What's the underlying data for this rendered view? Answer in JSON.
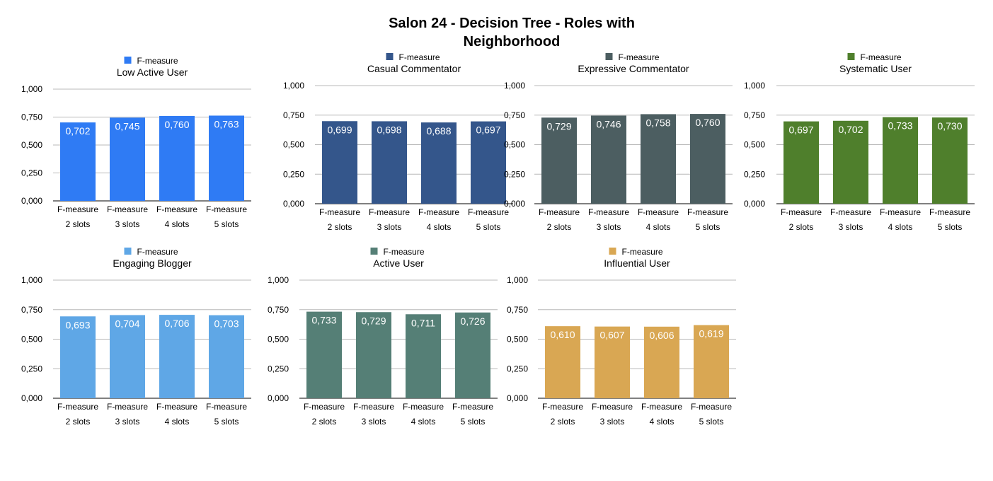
{
  "title_lines": [
    "Salon 24 - Decision Tree - Roles with",
    "Neighborhood"
  ],
  "chart_data": [
    {
      "type": "bar",
      "title": "Low Active User",
      "legend": "F-measure",
      "color": "#2f7bf4",
      "categories": [
        [
          "F-measure",
          "2 slots"
        ],
        [
          "F-measure",
          "3 slots"
        ],
        [
          "F-measure",
          "4 slots"
        ],
        [
          "F-measure",
          "5 slots"
        ]
      ],
      "values": [
        0.702,
        0.745,
        0.76,
        0.763
      ],
      "value_labels": [
        "0,702",
        "0,745",
        "0,760",
        "0,763"
      ],
      "yticks": [
        "0,000",
        "0,250",
        "0,500",
        "0,750",
        "1,000"
      ],
      "ylim": [
        0,
        1
      ],
      "grid": true,
      "legend_position": "top"
    },
    {
      "type": "bar",
      "title": "Casual Commentator",
      "legend": "F-measure",
      "color": "#34568b",
      "categories": [
        [
          "F-measure",
          "2 slots"
        ],
        [
          "F-measure",
          "3 slots"
        ],
        [
          "F-measure",
          "4 slots"
        ],
        [
          "F-measure",
          "5 slots"
        ]
      ],
      "values": [
        0.699,
        0.698,
        0.688,
        0.697
      ],
      "value_labels": [
        "0,699",
        "0,698",
        "0,688",
        "0,697"
      ],
      "yticks": [
        "0,000",
        "0,250",
        "0,500",
        "0,750",
        "1,000"
      ],
      "ylim": [
        0,
        1
      ],
      "grid": true,
      "legend_position": "top"
    },
    {
      "type": "bar",
      "title": "Expressive Commentator",
      "legend": "F-measure",
      "color": "#4c5e61",
      "categories": [
        [
          "F-measure",
          "2 slots"
        ],
        [
          "F-measure",
          "3 slots"
        ],
        [
          "F-measure",
          "4 slots"
        ],
        [
          "F-measure",
          "5 slots"
        ]
      ],
      "values": [
        0.729,
        0.746,
        0.758,
        0.76
      ],
      "value_labels": [
        "0,729",
        "0,746",
        "0,758",
        "0,760"
      ],
      "yticks": [
        "0,000",
        "0,250",
        "0,500",
        "0,750",
        "1,000"
      ],
      "ylim": [
        0,
        1
      ],
      "grid": true,
      "legend_position": "top"
    },
    {
      "type": "bar",
      "title": "Systematic User",
      "legend": "F-measure",
      "color": "#4f7f2c",
      "categories": [
        [
          "F-measure",
          "2 slots"
        ],
        [
          "F-measure",
          "3 slots"
        ],
        [
          "F-measure",
          "4 slots"
        ],
        [
          "F-measure",
          "5 slots"
        ]
      ],
      "values": [
        0.697,
        0.702,
        0.733,
        0.73
      ],
      "value_labels": [
        "0,697",
        "0,702",
        "0,733",
        "0,730"
      ],
      "yticks": [
        "0,000",
        "0,250",
        "0,500",
        "0,750",
        "1,000"
      ],
      "ylim": [
        0,
        1
      ],
      "grid": true,
      "legend_position": "top"
    },
    {
      "type": "bar",
      "title": "Engaging Blogger",
      "legend": "F-measure",
      "color": "#5fa7e6",
      "categories": [
        [
          "F-measure",
          "2 slots"
        ],
        [
          "F-measure",
          "3 slots"
        ],
        [
          "F-measure",
          "4 slots"
        ],
        [
          "F-measure",
          "5 slots"
        ]
      ],
      "values": [
        0.693,
        0.704,
        0.706,
        0.703
      ],
      "value_labels": [
        "0,693",
        "0,704",
        "0,706",
        "0,703"
      ],
      "yticks": [
        "0,000",
        "0,250",
        "0,500",
        "0,750",
        "1,000"
      ],
      "ylim": [
        0,
        1
      ],
      "grid": true,
      "legend_position": "top"
    },
    {
      "type": "bar",
      "title": "Active User",
      "legend": "F-measure",
      "color": "#557f76",
      "categories": [
        [
          "F-measure",
          "2 slots"
        ],
        [
          "F-measure",
          "3 slots"
        ],
        [
          "F-measure",
          "4 slots"
        ],
        [
          "F-measure",
          "5 slots"
        ]
      ],
      "values": [
        0.733,
        0.729,
        0.711,
        0.726
      ],
      "value_labels": [
        "0,733",
        "0,729",
        "0,711",
        "0,726"
      ],
      "yticks": [
        "0,000",
        "0,250",
        "0,500",
        "0,750",
        "1,000"
      ],
      "ylim": [
        0,
        1
      ],
      "grid": true,
      "legend_position": "top"
    },
    {
      "type": "bar",
      "title": "Influential User",
      "legend": "F-measure",
      "color": "#d9a753",
      "categories": [
        [
          "F-measure",
          "2 slots"
        ],
        [
          "F-measure",
          "3 slots"
        ],
        [
          "F-measure",
          "4 slots"
        ],
        [
          "F-measure",
          "5 slots"
        ]
      ],
      "values": [
        0.61,
        0.607,
        0.606,
        0.619
      ],
      "value_labels": [
        "0,610",
        "0,607",
        "0,606",
        "0,619"
      ],
      "yticks": [
        "0,000",
        "0,250",
        "0,500",
        "0,750",
        "1,000"
      ],
      "ylim": [
        0,
        1
      ],
      "grid": true,
      "legend_position": "top"
    }
  ]
}
